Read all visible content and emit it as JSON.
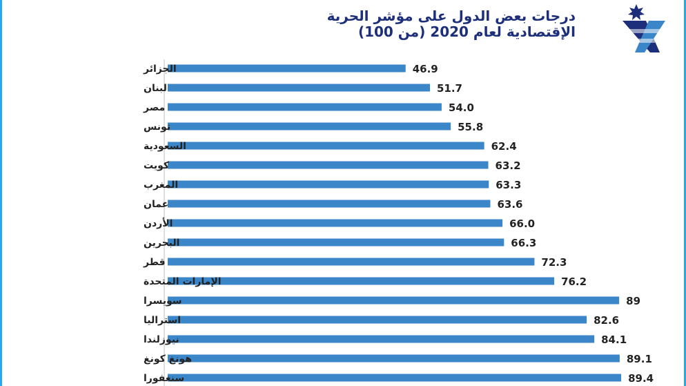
{
  "title": {
    "line1": "درجات بعض الدول على مؤشر الحرية",
    "line2": "الإقتصادية لعام 2020 (من 100)"
  },
  "logo": {
    "icon": "jordan-news-logo",
    "colors": [
      "#1d2f7a",
      "#3a86c8"
    ]
  },
  "colors": {
    "bar": "#3a86c8",
    "text": "#222222",
    "title": "#1d2f7a",
    "frame": "#2aa7e6"
  },
  "chart_data": {
    "type": "bar",
    "orientation": "horizontal",
    "categories": [
      "الجزائر",
      "لبنان",
      "مصر",
      "تونس",
      "السعودية",
      "كويت",
      "المغرب",
      "عمان",
      "الأردن",
      "البحرين",
      "قطر",
      "الإمارات المتحدة",
      "سويسرا",
      "استراليا",
      "نيوزلندا",
      "هونغ كونغ",
      "سنغفورا"
    ],
    "values": [
      46.9,
      51.7,
      54.0,
      55.8,
      62.4,
      63.2,
      63.3,
      63.6,
      66.0,
      66.3,
      72.3,
      76.2,
      89,
      82.6,
      84.1,
      89.1,
      89.4
    ],
    "value_labels": [
      "46.9",
      "51.7",
      "54.0",
      "55.8",
      "62.4",
      "63.2",
      "63.3",
      "63.6",
      "66.0",
      "66.3",
      "72.3",
      "76.2",
      "89",
      "82.6",
      "84.1",
      "89.1",
      "89.4"
    ],
    "xlim": [
      0,
      100
    ],
    "grid": false,
    "legend": "none"
  }
}
